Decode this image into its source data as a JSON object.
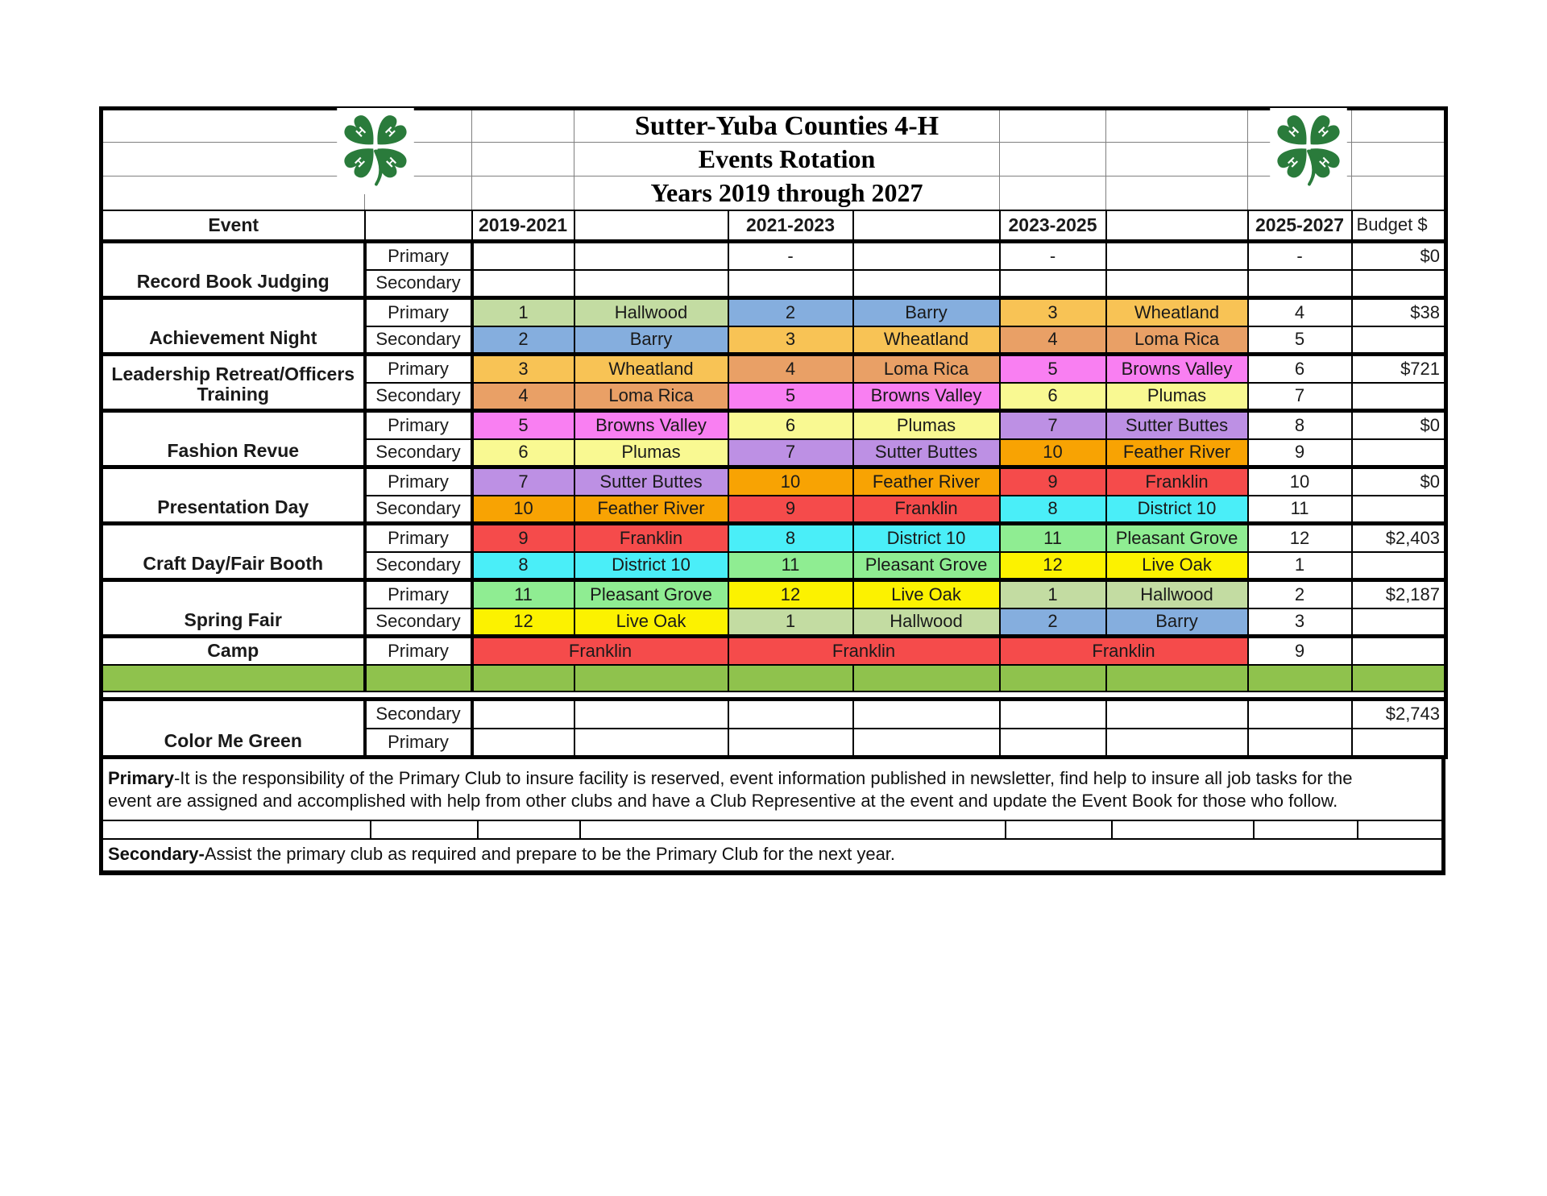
{
  "title": {
    "line1": "Sutter-Yuba Counties 4-H",
    "line2": "Events Rotation",
    "line3": "Years 2019 through 2027"
  },
  "header": {
    "event": "Event",
    "years": [
      "2019-2021",
      "2021-2023",
      "2023-2025",
      "2025-2027"
    ],
    "budget": "Budget $"
  },
  "colors": {
    "clover_green": "#2A7B3B",
    "band_green": "#8FC24D",
    "clubs": {
      "Hallwood": "#C3DCA2",
      "Barry": "#85AEDE",
      "Wheatland": "#F8C355",
      "Loma Rica": "#E9A066",
      "Browns Valley": "#F97FF2",
      "Plumas": "#F9F992",
      "Sutter Buttes": "#BD90E4",
      "Feather River": "#F8A303",
      "Franklin": "#F54B4B",
      "District 10": "#4AEEF8",
      "Pleasant Grove": "#8FED92",
      "Live Oak": "#FCF200"
    }
  },
  "blocks": [
    {
      "type": "event",
      "name": "Record Book Judging",
      "rows": [
        {
          "label": "Primary",
          "budget": "$0",
          "cells": [
            [
              "",
              null
            ],
            [
              "",
              null
            ],
            [
              "-",
              null
            ],
            [
              "",
              null
            ],
            [
              "-",
              null
            ],
            [
              "",
              null
            ],
            [
              "-",
              null
            ]
          ]
        },
        {
          "label": "Secondary",
          "budget": "",
          "cells": [
            [
              "",
              null
            ],
            [
              "",
              null
            ],
            [
              "",
              null
            ],
            [
              "",
              null
            ],
            [
              "",
              null
            ],
            [
              "",
              null
            ],
            [
              "",
              null
            ]
          ]
        }
      ]
    },
    {
      "type": "event",
      "name": "Achievement Night",
      "rows": [
        {
          "label": "Primary",
          "budget": "$38",
          "cells": [
            [
              "1",
              "Hallwood"
            ],
            [
              "Hallwood",
              "Hallwood"
            ],
            [
              "2",
              "Barry"
            ],
            [
              "Barry",
              "Barry"
            ],
            [
              "3",
              "Wheatland"
            ],
            [
              "Wheatland",
              "Wheatland"
            ],
            [
              "4",
              null
            ]
          ]
        },
        {
          "label": "Secondary",
          "budget": "",
          "cells": [
            [
              "2",
              "Barry"
            ],
            [
              "Barry",
              "Barry"
            ],
            [
              "3",
              "Wheatland"
            ],
            [
              "Wheatland",
              "Wheatland"
            ],
            [
              "4",
              "Loma Rica"
            ],
            [
              "Loma Rica",
              "Loma Rica"
            ],
            [
              "5",
              null
            ]
          ]
        }
      ]
    },
    {
      "type": "event",
      "name": "Leadership Retreat/Officers Training",
      "rows": [
        {
          "label": "Primary",
          "budget": "$721",
          "cells": [
            [
              "3",
              "Wheatland"
            ],
            [
              "Wheatland",
              "Wheatland"
            ],
            [
              "4",
              "Loma Rica"
            ],
            [
              "Loma Rica",
              "Loma Rica"
            ],
            [
              "5",
              "Browns Valley"
            ],
            [
              "Browns Valley",
              "Browns Valley"
            ],
            [
              "6",
              null
            ]
          ]
        },
        {
          "label": "Secondary",
          "budget": "",
          "cells": [
            [
              "4",
              "Loma Rica"
            ],
            [
              "Loma Rica",
              "Loma Rica"
            ],
            [
              "5",
              "Browns Valley"
            ],
            [
              "Browns Valley",
              "Browns Valley"
            ],
            [
              "6",
              "Plumas"
            ],
            [
              "Plumas",
              "Plumas"
            ],
            [
              "7",
              null
            ]
          ]
        }
      ]
    },
    {
      "type": "event",
      "name": "Fashion Revue",
      "rows": [
        {
          "label": "Primary",
          "budget": "$0",
          "cells": [
            [
              "5",
              "Browns Valley"
            ],
            [
              "Browns Valley",
              "Browns Valley"
            ],
            [
              "6",
              "Plumas"
            ],
            [
              "Plumas",
              "Plumas"
            ],
            [
              "7",
              "Sutter Buttes"
            ],
            [
              "Sutter Buttes",
              "Sutter Buttes"
            ],
            [
              "8",
              null
            ]
          ]
        },
        {
          "label": "Secondary",
          "budget": "",
          "cells": [
            [
              "6",
              "Plumas"
            ],
            [
              "Plumas",
              "Plumas"
            ],
            [
              "7",
              "Sutter Buttes"
            ],
            [
              "Sutter Buttes",
              "Sutter Buttes"
            ],
            [
              "10",
              "Feather River"
            ],
            [
              "Feather River",
              "Feather River"
            ],
            [
              "9",
              null
            ]
          ]
        }
      ]
    },
    {
      "type": "event",
      "name": "Presentation Day",
      "rows": [
        {
          "label": "Primary",
          "budget": "$0",
          "cells": [
            [
              "7",
              "Sutter Buttes"
            ],
            [
              "Sutter Buttes",
              "Sutter Buttes"
            ],
            [
              "10",
              "Feather River"
            ],
            [
              "Feather River",
              "Feather River"
            ],
            [
              "9",
              "Franklin"
            ],
            [
              "Franklin",
              "Franklin"
            ],
            [
              "10",
              null
            ]
          ]
        },
        {
          "label": "Secondary",
          "budget": "",
          "cells": [
            [
              "10",
              "Feather River"
            ],
            [
              "Feather River",
              "Feather River"
            ],
            [
              "9",
              "Franklin"
            ],
            [
              "Franklin",
              "Franklin"
            ],
            [
              "8",
              "District 10"
            ],
            [
              "District 10",
              "District 10"
            ],
            [
              "11",
              null
            ]
          ]
        }
      ]
    },
    {
      "type": "event",
      "name": "Craft Day/Fair Booth",
      "rows": [
        {
          "label": "Primary",
          "budget": "$2,403",
          "cells": [
            [
              "9",
              "Franklin"
            ],
            [
              "Franklin",
              "Franklin"
            ],
            [
              "8",
              "District 10"
            ],
            [
              "District 10",
              "District 10"
            ],
            [
              "11",
              "Pleasant Grove"
            ],
            [
              "Pleasant Grove",
              "Pleasant Grove"
            ],
            [
              "12",
              null
            ]
          ]
        },
        {
          "label": "Secondary",
          "budget": "",
          "cells": [
            [
              "8",
              "District 10"
            ],
            [
              "District 10",
              "District 10"
            ],
            [
              "11",
              "Pleasant Grove"
            ],
            [
              "Pleasant Grove",
              "Pleasant Grove"
            ],
            [
              "12",
              "Live Oak"
            ],
            [
              "Live Oak",
              "Live Oak"
            ],
            [
              "1",
              null
            ]
          ]
        }
      ]
    },
    {
      "type": "event",
      "name": "Spring Fair",
      "rows": [
        {
          "label": "Primary",
          "budget": "$2,187",
          "cells": [
            [
              "11",
              "Pleasant Grove"
            ],
            [
              "Pleasant Grove",
              "Pleasant Grove"
            ],
            [
              "12",
              "Live Oak"
            ],
            [
              "Live Oak",
              "Live Oak"
            ],
            [
              "1",
              "Hallwood"
            ],
            [
              "Hallwood",
              "Hallwood"
            ],
            [
              "2",
              null
            ]
          ]
        },
        {
          "label": "Secondary",
          "budget": "",
          "cells": [
            [
              "12",
              "Live Oak"
            ],
            [
              "Live Oak",
              "Live Oak"
            ],
            [
              "1",
              "Hallwood"
            ],
            [
              "Hallwood",
              "Hallwood"
            ],
            [
              "2",
              "Barry"
            ],
            [
              "Barry",
              "Barry"
            ],
            [
              "3",
              null
            ]
          ]
        }
      ]
    },
    {
      "type": "event",
      "name": "Camp",
      "rows": [
        {
          "label": "Primary",
          "budget": "",
          "cells": [
            [
              "Franklin",
              "Franklin",
              2
            ],
            [
              "Franklin",
              "Franklin",
              2
            ],
            [
              "Franklin",
              "Franklin",
              2
            ],
            [
              "9",
              null
            ]
          ]
        }
      ]
    },
    {
      "type": "band"
    },
    {
      "type": "spacer"
    },
    {
      "type": "event",
      "name": "Color Me Green",
      "rows": [
        {
          "label": "Secondary",
          "budget": "$2,743",
          "cells": [
            [
              "",
              null
            ],
            [
              "",
              null
            ],
            [
              "",
              null
            ],
            [
              "",
              null
            ],
            [
              "",
              null
            ],
            [
              "",
              null
            ],
            [
              "",
              null
            ]
          ]
        },
        {
          "label": "Primary",
          "budget": "",
          "cells": [
            [
              "",
              null
            ],
            [
              "",
              null
            ],
            [
              "",
              null
            ],
            [
              "",
              null
            ],
            [
              "",
              null
            ],
            [
              "",
              null
            ],
            [
              "",
              null
            ]
          ]
        }
      ]
    }
  ],
  "footer": {
    "primary_bold": "Primary",
    "primary_line1": "-It is the responsibility of the Primary Club to insure facility is reserved, event information published in newsletter, find help to insure all job tasks for the",
    "primary_line2": "event are assigned and accomplished with help from other clubs and have a Club Representive at the event and update the Event Book for those who follow.",
    "secondary_bold": "Secondary-",
    "secondary_text": "Assist the primary club as required and prepare to be the Primary Club for the next year."
  }
}
